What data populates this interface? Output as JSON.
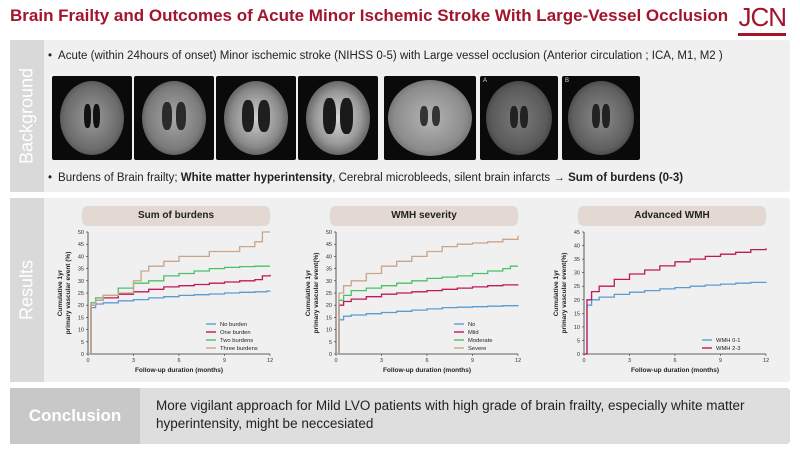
{
  "title": "Brain Frailty and Outcomes of Acute Minor Ischemic Stroke With Large-Vessel Occlusion",
  "logo": "JCN",
  "background": {
    "label": "Background",
    "bullet1": "Acute (within 24hours of onset) Minor ischemic stroke (NIHSS 0-5) with Large vessel occlusion (Anterior circulation ; ICA, M1, M2 )",
    "bullet2_a": "Burdens of Brain frailty; ",
    "bullet2_b": "White matter hyperintensity",
    "bullet2_c": ", Cerebral microbleeds, silent brain infarcts → ",
    "bullet2_d": "Sum of burdens (0-3)",
    "image_tags": [
      "A",
      "B"
    ]
  },
  "results": {
    "label": "Results",
    "panels": [
      {
        "title": "Sum of burdens"
      },
      {
        "title": "WMH severity"
      },
      {
        "title": "Advanced WMH"
      }
    ]
  },
  "conclusion": {
    "label": "Conclusion",
    "text": "More vigilant approach for Mild LVO patients with high grade of brain frailty, especially white matter hyperintensity, might be neccesiated"
  },
  "colors": {
    "accent": "#a3152c",
    "blue": "#5b9bd5",
    "red": "#c0185a",
    "green": "#4cc06a",
    "tan": "#c9a58a"
  },
  "chart_data": [
    {
      "type": "line",
      "title": "Sum of burdens",
      "xlabel": "Follow-up duration (months)",
      "ylabel": "Cumulative 1yr primary vascular event (%)",
      "xlim": [
        0,
        12
      ],
      "ylim": [
        0,
        50
      ],
      "xticks": [
        0,
        3,
        6,
        9,
        12
      ],
      "yticks": [
        0,
        5,
        10,
        15,
        20,
        25,
        30,
        35,
        40,
        45,
        50
      ],
      "legend_position": "bottom-right",
      "series": [
        {
          "name": "No burden",
          "color": "#5b9bd5",
          "x": [
            0,
            0.2,
            0.5,
            1,
            2,
            3,
            4,
            5,
            6,
            7,
            8,
            9,
            10,
            11,
            11.8,
            12
          ],
          "y": [
            0,
            19,
            20.5,
            21,
            21.8,
            22.3,
            23,
            23.5,
            24,
            24.3,
            24.6,
            25,
            25.3,
            25.5,
            25.8,
            26
          ]
        },
        {
          "name": "One burden",
          "color": "#c0185a",
          "x": [
            0,
            0.2,
            0.5,
            1,
            2,
            3,
            4,
            5,
            6,
            7,
            8,
            9,
            10,
            11,
            11.5,
            12
          ],
          "y": [
            0,
            20,
            22,
            23,
            24.5,
            25.5,
            26.5,
            27.5,
            28,
            28.5,
            29,
            29.5,
            30,
            30.5,
            32,
            32.5
          ]
        },
        {
          "name": "Two burdens",
          "color": "#4cc06a",
          "x": [
            0,
            0.2,
            0.5,
            1,
            2,
            3,
            4,
            5,
            6,
            7,
            8,
            9,
            10,
            11,
            12
          ],
          "y": [
            0,
            21,
            23,
            24,
            27,
            29,
            30,
            32,
            33,
            34,
            35,
            35.5,
            35.8,
            36,
            36
          ]
        },
        {
          "name": "Three burdens",
          "color": "#c9a58a",
          "x": [
            0,
            0.2,
            0.5,
            1,
            2,
            3,
            3.5,
            4,
            5,
            6,
            7,
            8,
            9,
            10,
            11,
            11.5,
            12
          ],
          "y": [
            0,
            20,
            22,
            24,
            25,
            30,
            34,
            36,
            38,
            40,
            40,
            42,
            42,
            44,
            46,
            50,
            50
          ]
        }
      ]
    },
    {
      "type": "line",
      "title": "WMH severity",
      "xlabel": "Follow-up duration (months)",
      "ylabel": "Cumulative 1yr primary vascular event(%)",
      "xlim": [
        0,
        12
      ],
      "ylim": [
        0,
        50
      ],
      "xticks": [
        0,
        3,
        6,
        9,
        12
      ],
      "yticks": [
        0,
        5,
        10,
        15,
        20,
        25,
        30,
        35,
        40,
        45,
        50
      ],
      "legend_position": "bottom-right",
      "series": [
        {
          "name": "No",
          "color": "#5b9bd5",
          "x": [
            0,
            0.2,
            0.5,
            1,
            2,
            3,
            4,
            5,
            6,
            7,
            8,
            9,
            10,
            11,
            12
          ],
          "y": [
            0,
            14,
            15.5,
            16,
            16.5,
            17,
            17.5,
            18,
            18.5,
            19,
            19.2,
            19.4,
            19.6,
            19.8,
            20
          ]
        },
        {
          "name": "Mild",
          "color": "#c0185a",
          "x": [
            0,
            0.2,
            0.5,
            1,
            2,
            3,
            4,
            5,
            6,
            7,
            8,
            9,
            10,
            11,
            12
          ],
          "y": [
            0,
            20,
            21.5,
            22.5,
            23.5,
            24.5,
            25,
            25.5,
            26,
            26.5,
            27,
            27.5,
            28,
            28.3,
            28.5
          ]
        },
        {
          "name": "Moderate",
          "color": "#4cc06a",
          "x": [
            0,
            0.2,
            0.5,
            1,
            2,
            3,
            4,
            5,
            6,
            7,
            8,
            9,
            10,
            11,
            11.5,
            12
          ],
          "y": [
            0,
            22,
            24,
            26,
            27,
            28,
            29,
            30,
            31,
            31.5,
            32,
            33,
            34,
            35,
            36,
            36
          ]
        },
        {
          "name": "Severe",
          "color": "#c9a58a",
          "x": [
            0,
            0.2,
            0.5,
            1,
            2,
            3,
            4,
            5,
            6,
            7,
            8,
            9,
            10,
            11,
            12
          ],
          "y": [
            0,
            25,
            28,
            30,
            33,
            36,
            38,
            40,
            42,
            44,
            45,
            45.5,
            46,
            47,
            48.5
          ]
        }
      ]
    },
    {
      "type": "line",
      "title": "Advanced WMH",
      "xlabel": "Follow-up duration (months)",
      "ylabel": "Cumulative 1yr primary vascular event(%)",
      "xlim": [
        0,
        12
      ],
      "ylim": [
        0,
        45
      ],
      "xticks": [
        0,
        3,
        6,
        9,
        12
      ],
      "yticks": [
        0,
        5,
        10,
        15,
        20,
        25,
        30,
        35,
        40,
        45
      ],
      "legend_position": "bottom-right",
      "series": [
        {
          "name": "WMH 0-1",
          "color": "#5b9bd5",
          "x": [
            0,
            0.2,
            0.5,
            1,
            2,
            3,
            4,
            5,
            6,
            7,
            8,
            9,
            10,
            11,
            12
          ],
          "y": [
            0,
            18,
            20,
            21,
            22,
            22.8,
            23.4,
            24,
            24.5,
            25,
            25.4,
            25.8,
            26.1,
            26.4,
            26.6
          ]
        },
        {
          "name": "WMH 2-3",
          "color": "#c0185a",
          "x": [
            0,
            0.2,
            0.5,
            1,
            2,
            3,
            4,
            5,
            6,
            7,
            8,
            9,
            10,
            11,
            12
          ],
          "y": [
            0,
            20,
            23,
            25,
            27.5,
            29.5,
            31,
            32.5,
            34,
            35,
            36,
            36.8,
            37.5,
            38.5,
            39
          ]
        }
      ]
    }
  ]
}
